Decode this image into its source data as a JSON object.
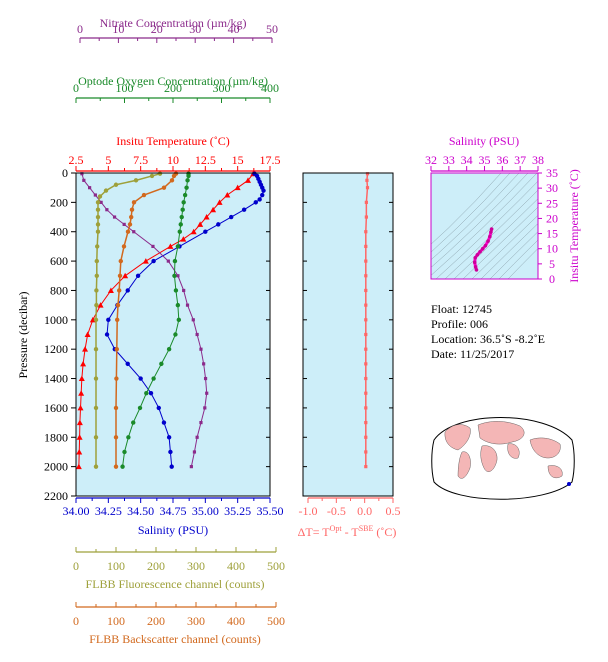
{
  "colors": {
    "plot_bg": "#cdeef9",
    "temperature": "#ff0000",
    "salinity": "#0000cc",
    "nitrate": "#8b2a8b",
    "oxygen": "#1a8a2a",
    "fluorescence": "#9ea03a",
    "backscatter": "#d2691e",
    "delta_t": "#ff6666",
    "ts_axis": "#cc00cc"
  },
  "axes": {
    "nitrate": {
      "title": "Nitrate Concentration (µm/kg)",
      "ticks": [
        "0",
        "10",
        "20",
        "30",
        "40",
        "50"
      ]
    },
    "oxygen": {
      "title": "Optode Oxygen Concentration (µm/kg)",
      "ticks": [
        "0",
        "100",
        "200",
        "300",
        "400"
      ]
    },
    "temperature": {
      "title": "Insitu Temperature (˚C)",
      "ticks": [
        "2.5",
        "5",
        "7.5",
        "10",
        "12.5",
        "15",
        "17.5"
      ]
    },
    "pressure": {
      "title": "Pressure (decibar)",
      "ticks": [
        "0",
        "200",
        "400",
        "600",
        "800",
        "1000",
        "1200",
        "1400",
        "1600",
        "1800",
        "2000",
        "2200"
      ]
    },
    "salinity": {
      "title": "Salinity (PSU)",
      "ticks": [
        "34.00",
        "34.25",
        "34.50",
        "34.75",
        "35.00",
        "35.25",
        "35.50"
      ]
    },
    "delta_t": {
      "title_prefix": "ΔT= T",
      "sup1": "Opt",
      "mid": " - T",
      "sup2": "SBE",
      "suffix": " (˚C)",
      "ticks": [
        "-1.0",
        "-0.5",
        "0.0",
        "0.5"
      ]
    },
    "fluorescence": {
      "title": "FLBB Fluorescence channel (counts)",
      "ticks": [
        "0",
        "100",
        "200",
        "300",
        "400",
        "500"
      ]
    },
    "backscatter": {
      "title": "FLBB Backscatter channel (counts)",
      "ticks": [
        "0",
        "100",
        "200",
        "300",
        "400",
        "500"
      ]
    },
    "ts_salinity": {
      "title": "Salinity (PSU)",
      "ticks": [
        "32",
        "33",
        "34",
        "35",
        "36",
        "37",
        "38"
      ]
    },
    "ts_temperature": {
      "title": "Insitu Temperature (˚C)",
      "ticks": [
        "0",
        "5",
        "10",
        "15",
        "20",
        "25",
        "30",
        "35"
      ]
    }
  },
  "info": {
    "float": "Float:  12745",
    "profile": "Profile:  006",
    "location": "Location:  36.5˚S  -8.2˚E",
    "date": "Date:  11/25/2017"
  },
  "chart_data": {
    "type": "line",
    "y_axis": {
      "label": "Pressure (decibar)",
      "range": [
        2200,
        0
      ]
    },
    "series": [
      {
        "name": "Insitu Temperature",
        "unit": "˚C",
        "range": [
          2.5,
          17.5
        ],
        "pressure": [
          5,
          50,
          100,
          150,
          200,
          250,
          300,
          350,
          400,
          450,
          500,
          600,
          700,
          800,
          900,
          1000,
          1100,
          1200,
          1300,
          1400,
          1500,
          1600,
          1700,
          1800,
          1900,
          2000
        ],
        "values": [
          16.2,
          15.8,
          15.0,
          14.2,
          13.6,
          13.1,
          12.6,
          12.1,
          11.6,
          10.8,
          9.8,
          7.9,
          6.3,
          5.2,
          4.4,
          3.8,
          3.4,
          3.2,
          3.05,
          2.95,
          2.9,
          2.85,
          2.8,
          2.78,
          2.75,
          2.72
        ]
      },
      {
        "name": "Salinity",
        "unit": "PSU",
        "range": [
          34.0,
          35.5
        ],
        "pressure": [
          5,
          20,
          40,
          60,
          80,
          100,
          120,
          150,
          180,
          200,
          250,
          300,
          350,
          400,
          500,
          600,
          700,
          800,
          900,
          1000,
          1100,
          1200,
          1300,
          1400,
          1500,
          1600,
          1700,
          1800,
          1900,
          2000
        ],
        "values": [
          35.38,
          35.4,
          35.41,
          35.42,
          35.43,
          35.44,
          35.45,
          35.44,
          35.42,
          35.39,
          35.3,
          35.2,
          35.1,
          35.0,
          34.8,
          34.6,
          34.48,
          34.4,
          34.32,
          34.25,
          34.24,
          34.3,
          34.4,
          34.5,
          34.58,
          34.64,
          34.68,
          34.72,
          34.73,
          34.74
        ]
      },
      {
        "name": "Nitrate Concentration",
        "unit": "µm/kg",
        "range": [
          0,
          50
        ],
        "pressure": [
          5,
          50,
          100,
          150,
          200,
          250,
          300,
          350,
          400,
          500,
          600,
          700,
          800,
          900,
          1000,
          1100,
          1200,
          1300,
          1400,
          1500,
          1600,
          1700,
          1800,
          1900,
          2000
        ],
        "values": [
          0.5,
          1.0,
          2.5,
          4.0,
          5.5,
          7.0,
          9.0,
          11.5,
          14.0,
          19.0,
          23.0,
          25.5,
          27.0,
          28.0,
          29.5,
          30.5,
          31.5,
          32.2,
          32.7,
          33.0,
          32.5,
          31.5,
          30.5,
          29.8,
          29.0
        ]
      },
      {
        "name": "Optode Oxygen Concentration",
        "unit": "µm/kg",
        "range": [
          0,
          400
        ],
        "pressure": [
          5,
          20,
          50,
          100,
          150,
          200,
          250,
          300,
          350,
          400,
          500,
          600,
          700,
          800,
          900,
          1000,
          1100,
          1200,
          1300,
          1400,
          1500,
          1600,
          1700,
          1800,
          1900,
          2000
        ],
        "values": [
          232,
          232,
          230,
          228,
          225,
          222,
          220,
          218,
          216,
          214,
          210,
          204,
          203,
          206,
          210,
          212,
          205,
          192,
          176,
          160,
          145,
          132,
          118,
          108,
          100,
          96
        ]
      },
      {
        "name": "FLBB Fluorescence channel",
        "unit": "counts",
        "range": [
          0,
          500
        ],
        "pressure": [
          5,
          20,
          50,
          80,
          120,
          160,
          200,
          250,
          300,
          350,
          400,
          500,
          600,
          700,
          800,
          900,
          1000,
          1200,
          1400,
          1600,
          1800,
          2000
        ],
        "values": [
          210,
          190,
          150,
          100,
          75,
          60,
          55,
          55,
          55,
          55,
          55,
          53,
          52,
          52,
          51,
          51,
          50,
          50,
          50,
          50,
          50,
          50
        ]
      },
      {
        "name": "FLBB Backscatter channel",
        "unit": "counts",
        "range": [
          0,
          500
        ],
        "pressure": [
          5,
          20,
          50,
          100,
          150,
          200,
          250,
          300,
          350,
          400,
          500,
          600,
          700,
          800,
          900,
          1000,
          1200,
          1400,
          1600,
          1800,
          2000
        ],
        "values": [
          250,
          245,
          240,
          220,
          170,
          145,
          140,
          138,
          135,
          130,
          120,
          112,
          110,
          108,
          105,
          103,
          102,
          101,
          100,
          100,
          100
        ]
      },
      {
        "name": "ΔT",
        "unit": "˚C",
        "range": [
          -1.0,
          0.5
        ],
        "pressure": [
          5,
          50,
          100,
          200,
          300,
          400,
          500,
          600,
          700,
          800,
          900,
          1000,
          1100,
          1200,
          1300,
          1400,
          1500,
          1600,
          1700,
          1800,
          1900,
          2000
        ],
        "values": [
          0.05,
          0.04,
          0.05,
          0.03,
          0.03,
          0.02,
          0.02,
          0.02,
          0.02,
          0.02,
          0.02,
          0.02,
          0.02,
          0.02,
          0.02,
          0.02,
          0.02,
          0.02,
          0.02,
          0.02,
          0.02,
          0.02
        ]
      }
    ],
    "ts_diagram": {
      "type": "scatter",
      "xlabel": "Salinity (PSU)",
      "ylabel": "Insitu Temperature (˚C)",
      "xlim": [
        32,
        38
      ],
      "ylim": [
        0,
        35
      ],
      "salinity": [
        34.55,
        34.5,
        34.45,
        34.48,
        34.6,
        34.75,
        34.9,
        35.05,
        35.2,
        35.3,
        35.36,
        35.4
      ],
      "temperature": [
        3.0,
        4.0,
        5.5,
        7.0,
        8.0,
        9.0,
        10.0,
        11.0,
        12.5,
        14.0,
        15.5,
        16.5
      ]
    }
  }
}
